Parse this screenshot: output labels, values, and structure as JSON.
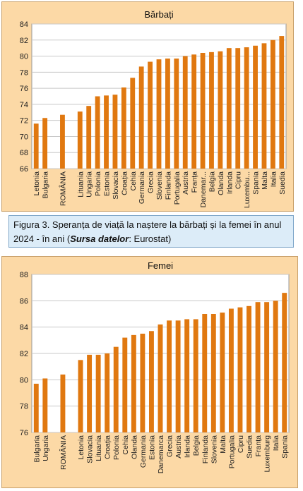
{
  "figure_caption": {
    "prefix": "Figura 3. Speranța de viață la naștere la bărbați și la femei în anul 2024  - în ani (",
    "source_label": "Sursa  datelor",
    "suffix": ": Eurostat)"
  },
  "colors": {
    "bar": "#e07810",
    "panel": "#fcd9a6",
    "plot": "#ffffff",
    "grid": "#c8c8c8"
  },
  "chart_data": [
    {
      "type": "bar",
      "title": "Bărbați",
      "xlabel": "",
      "ylabel": "",
      "ylim": [
        66,
        84
      ],
      "yticks": [
        66,
        68,
        70,
        72,
        74,
        76,
        78,
        80,
        82,
        84
      ],
      "grid": true,
      "categories": [
        "Letonia",
        "Bulgaria",
        "",
        "ROMÂNIA",
        "",
        "Lituania",
        "Ungaria",
        "Polonia",
        "Estonia",
        "Slovacia",
        "Croația",
        "Cehia",
        "Germania",
        "Grecia",
        "Slovenia",
        "Finlanda",
        "Portugalia",
        "Austria",
        "Franța",
        "Danemar...",
        "Belgia",
        "Olanda",
        "Irlanda",
        "Cipru",
        "Luxembu...",
        "Spania",
        "Malta",
        "Italia",
        "Suedia"
      ],
      "values": [
        71.6,
        72.3,
        null,
        72.7,
        null,
        73.1,
        73.8,
        75.0,
        75.1,
        75.2,
        76.1,
        77.3,
        78.7,
        79.3,
        79.6,
        79.7,
        79.7,
        80.0,
        80.2,
        80.4,
        80.5,
        80.6,
        81.0,
        81.0,
        81.1,
        81.3,
        81.6,
        82.0,
        82.5
      ]
    },
    {
      "type": "bar",
      "title": "Femei",
      "xlabel": "",
      "ylabel": "",
      "ylim": [
        76,
        88
      ],
      "yticks": [
        76,
        78,
        80,
        82,
        84,
        86,
        88
      ],
      "grid": true,
      "categories": [
        "Bulgaria",
        "Ungaria",
        "",
        "ROMÂNIA",
        "",
        "Letonia",
        "Slovacia",
        "Lituania",
        "Croația",
        "Polonia",
        "Cehia",
        "Olanda",
        "Germania",
        "Estonia",
        "Danemarca",
        "Grecia",
        "Austria",
        "Irlanda",
        "Belgia",
        "Finlanda",
        "Slovenia",
        "Malta",
        "Portugalia",
        "Cipru",
        "Suedia",
        "Franța",
        "Luxemburg",
        "Italia",
        "Spania"
      ],
      "values": [
        79.7,
        80.1,
        null,
        80.4,
        null,
        81.5,
        81.9,
        81.9,
        82.0,
        82.5,
        83.2,
        83.4,
        83.5,
        83.7,
        84.2,
        84.5,
        84.5,
        84.6,
        84.6,
        85.0,
        85.0,
        85.1,
        85.4,
        85.5,
        85.6,
        85.9,
        85.9,
        86.0,
        86.6
      ]
    }
  ]
}
